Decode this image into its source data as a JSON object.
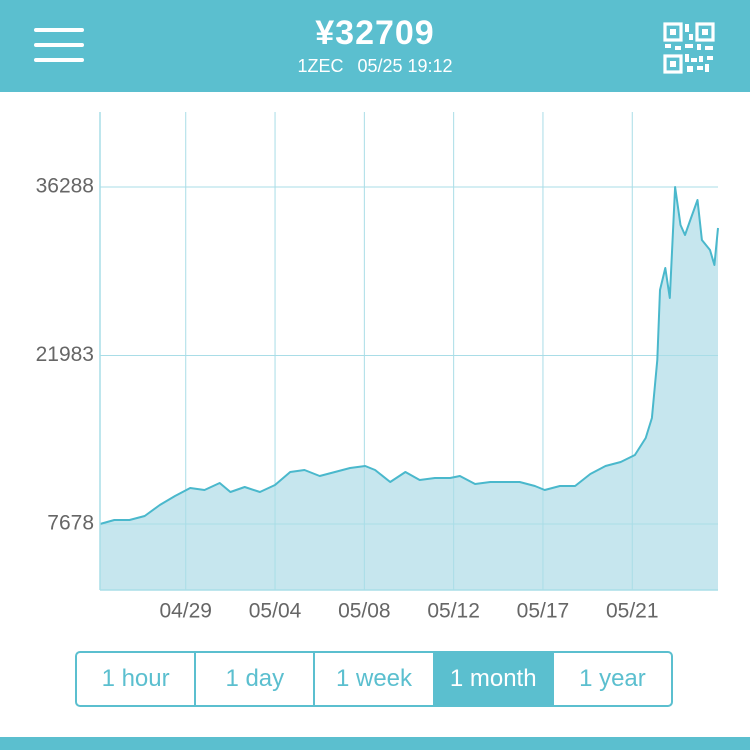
{
  "header": {
    "price": "¥32709",
    "coin": "1ZEC",
    "time": "05/25 19:12"
  },
  "chart_data": {
    "type": "area",
    "x": [
      0.4,
      2.0,
      3.7,
      5.4,
      7.1,
      8.8,
      10.5,
      12.1,
      13.8,
      15.0,
      16.6,
      18.3,
      20.0,
      21.7,
      23.3,
      25.0,
      26.7,
      28.4,
      30.1,
      31.2,
      32.9,
      34.6,
      36.2,
      37.9,
      39.6,
      40.7,
      42.4,
      44.1,
      45.8,
      47.4,
      49.1,
      50.2,
      51.9,
      53.6,
      55.3,
      57.0,
      58.7,
      60.3,
      61.5,
      62.2,
      62.8,
      63.1,
      63.7,
      64.2,
      64.8,
      65.4,
      65.9,
      66.5,
      67.3,
      67.8,
      68.7,
      69.2,
      69.6
    ],
    "values": [
      7678,
      8018,
      8018,
      8357,
      9291,
      10055,
      10734,
      10565,
      11159,
      10395,
      10819,
      10395,
      10989,
      12093,
      12263,
      11753,
      12093,
      12432,
      12602,
      12263,
      11244,
      12093,
      11414,
      11583,
      11583,
      11753,
      11074,
      11244,
      11244,
      11244,
      10904,
      10565,
      10904,
      10904,
      11923,
      12602,
      12942,
      13536,
      14979,
      16677,
      21601,
      27545,
      29413,
      26866,
      36288,
      33063,
      32214,
      33488,
      35186,
      31789,
      30940,
      29667,
      32808
    ],
    "color": "#4ab8cc",
    "fill": "#c6e6ee",
    "xlim": [
      0.4,
      69.6
    ],
    "xticks": [
      {
        "value": 10,
        "label": "04/29"
      },
      {
        "value": 20,
        "label": "05/04"
      },
      {
        "value": 30,
        "label": "05/08"
      },
      {
        "value": 40,
        "label": "05/12"
      },
      {
        "value": 50,
        "label": "05/17"
      },
      {
        "value": 60,
        "label": "05/21"
      }
    ],
    "ylim": [
      2075,
      42655
    ],
    "yticks": [
      7678,
      21983,
      36288
    ],
    "grid": true
  },
  "buttons": {
    "labels": [
      "1 hour",
      "1 day",
      "1 week",
      "1 month",
      "1 year"
    ],
    "selected": 3
  }
}
